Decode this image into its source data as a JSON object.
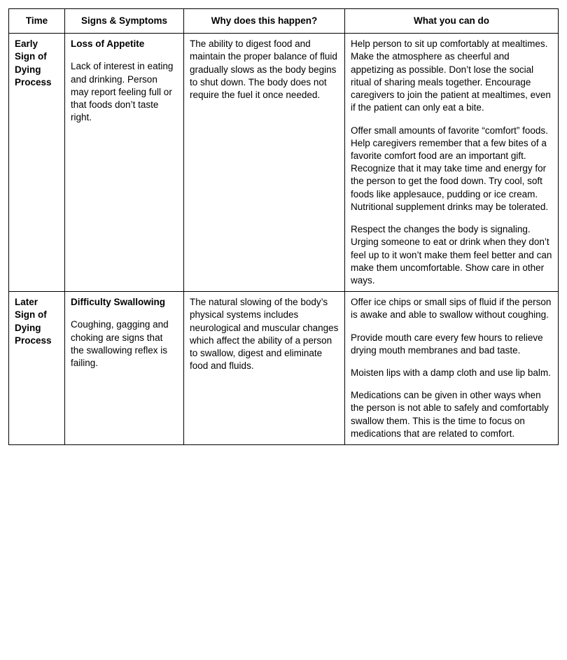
{
  "headers": {
    "time": "Time",
    "signs": "Signs & Symptoms",
    "why": "Why does this happen?",
    "todo": "What you can do"
  },
  "rows": [
    {
      "time": "Early Sign of Dying Process",
      "signs_title": "Loss of Appetite",
      "signs_desc": "Lack of interest in eating and drinking. Person may report feeling full or that foods don’t taste right.",
      "why": "The ability to digest food and maintain the proper balance of fluid gradually slows as the body begins to shut down. The body does not require the fuel it once needed.",
      "todo": [
        "Help person to sit up comfortably at mealtimes. Make the atmosphere as cheerful and appetizing as possible. Don’t lose the social ritual of sharing meals together. Encourage caregivers to join the patient at mealtimes, even if the patient can only eat a bite.",
        "Offer small amounts of favorite “comfort” foods. Help caregivers remember that a few bites of a favorite comfort food are an important gift. Recognize that it may take time and energy for the person to get the food down. Try cool, soft foods like applesauce, pudding or ice cream. Nutritional supplement drinks may be tolerated.",
        "Respect the changes the body is signaling. Urging someone to eat or drink when they don’t feel up to it won’t make them feel better and can make them uncomfortable. Show care in other ways."
      ]
    },
    {
      "time": "Later Sign of Dying Process",
      "signs_title": "Difficulty Swallowing",
      "signs_desc": "Coughing, gagging and choking are signs that the swallowing reflex is failing.",
      "why": "The natural slowing of the body’s physical systems includes neurological and muscular changes which affect the ability of a person to swallow, digest and eliminate food and fluids.",
      "todo": [
        "Offer ice chips or small sips of fluid if the person is awake and able to swallow without coughing.",
        "Provide mouth care every few hours to relieve drying mouth membranes and bad taste.",
        "Moisten lips with a damp cloth and use lip balm.",
        "Medications can be given in other ways when the person is not able to safely and comfortably swallow them. This is the time to focus on medications that are related to comfort."
      ]
    }
  ]
}
